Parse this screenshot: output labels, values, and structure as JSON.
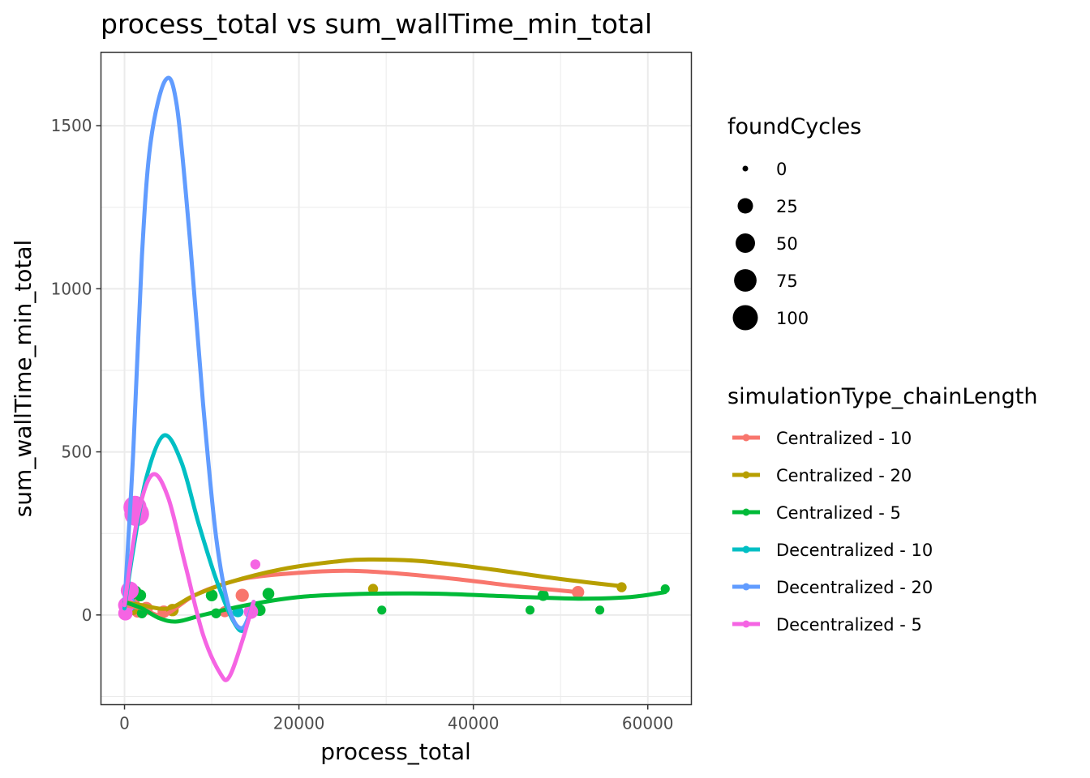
{
  "chart_data": {
    "type": "scatter",
    "title": "process_total  vs  sum_wallTime_min_total",
    "xlabel": "process_total",
    "ylabel": "sum_wallTime_min_total",
    "xlim": [
      -2700,
      65000
    ],
    "ylim": [
      -275,
      1725
    ],
    "xticks": [
      0,
      20000,
      40000,
      60000
    ],
    "xtick_labels": [
      "0",
      "20000",
      "40000",
      "60000"
    ],
    "yticks": [
      0,
      500,
      1000,
      1500
    ],
    "ytick_labels": [
      "0",
      "500",
      "1000",
      "1500"
    ],
    "grid": true,
    "size_legend": {
      "title": "foundCycles",
      "entries": [
        {
          "label": "0",
          "value": 0
        },
        {
          "label": "25",
          "value": 25
        },
        {
          "label": "50",
          "value": 50
        },
        {
          "label": "75",
          "value": 75
        },
        {
          "label": "100",
          "value": 100
        }
      ]
    },
    "color_legend": {
      "title": "simulationType_chainLength",
      "placement": "right"
    },
    "series": [
      {
        "name": "Centralized - 10",
        "color": "#F8766D",
        "points": [
          {
            "x": 300,
            "y": 20,
            "s": 20
          },
          {
            "x": 800,
            "y": 35,
            "s": 30
          },
          {
            "x": 1500,
            "y": 10,
            "s": 10
          },
          {
            "x": 2500,
            "y": 20,
            "s": 15
          },
          {
            "x": 4500,
            "y": 10,
            "s": 12
          },
          {
            "x": 11500,
            "y": 10,
            "s": 8
          },
          {
            "x": 13500,
            "y": 60,
            "s": 15
          },
          {
            "x": 52000,
            "y": 70,
            "s": 12
          }
        ],
        "curve": [
          {
            "x": 0,
            "y": 30
          },
          {
            "x": 2000,
            "y": 20
          },
          {
            "x": 4500,
            "y": 0
          },
          {
            "x": 8000,
            "y": 60
          },
          {
            "x": 12000,
            "y": 100
          },
          {
            "x": 16000,
            "y": 120
          },
          {
            "x": 24000,
            "y": 135
          },
          {
            "x": 30000,
            "y": 130
          },
          {
            "x": 38000,
            "y": 110
          },
          {
            "x": 45000,
            "y": 88
          },
          {
            "x": 52000,
            "y": 70
          }
        ]
      },
      {
        "name": "Centralized - 20",
        "color": "#B79F00",
        "points": [
          {
            "x": 1000,
            "y": 20,
            "s": 15
          },
          {
            "x": 5500,
            "y": 15,
            "s": 12
          },
          {
            "x": 28500,
            "y": 80,
            "s": 5
          },
          {
            "x": 57000,
            "y": 85,
            "s": 5
          }
        ],
        "curve": [
          {
            "x": 0,
            "y": 40
          },
          {
            "x": 2000,
            "y": 30
          },
          {
            "x": 5000,
            "y": 20
          },
          {
            "x": 8000,
            "y": 60
          },
          {
            "x": 12000,
            "y": 100
          },
          {
            "x": 18000,
            "y": 140
          },
          {
            "x": 24000,
            "y": 163
          },
          {
            "x": 28000,
            "y": 170
          },
          {
            "x": 34000,
            "y": 165
          },
          {
            "x": 42000,
            "y": 140
          },
          {
            "x": 50000,
            "y": 110
          },
          {
            "x": 57000,
            "y": 88
          }
        ]
      },
      {
        "name": "Centralized - 5",
        "color": "#00BA38",
        "points": [
          {
            "x": 500,
            "y": 50,
            "s": 10
          },
          {
            "x": 1200,
            "y": 70,
            "s": 15
          },
          {
            "x": 1800,
            "y": 60,
            "s": 10
          },
          {
            "x": 2000,
            "y": 5,
            "s": 5
          },
          {
            "x": 10000,
            "y": 60,
            "s": 10
          },
          {
            "x": 10500,
            "y": 5,
            "s": 5
          },
          {
            "x": 15500,
            "y": 15,
            "s": 10
          },
          {
            "x": 16500,
            "y": 65,
            "s": 10
          },
          {
            "x": 29500,
            "y": 15,
            "s": 3
          },
          {
            "x": 46500,
            "y": 15,
            "s": 3
          },
          {
            "x": 48000,
            "y": 60,
            "s": 8
          },
          {
            "x": 54500,
            "y": 15,
            "s": 3
          },
          {
            "x": 62000,
            "y": 80,
            "s": 3
          }
        ],
        "curve": [
          {
            "x": 0,
            "y": 40
          },
          {
            "x": 2000,
            "y": 20
          },
          {
            "x": 4000,
            "y": -10
          },
          {
            "x": 6000,
            "y": -20
          },
          {
            "x": 9000,
            "y": 0
          },
          {
            "x": 14000,
            "y": 30
          },
          {
            "x": 20000,
            "y": 55
          },
          {
            "x": 28000,
            "y": 65
          },
          {
            "x": 36000,
            "y": 65
          },
          {
            "x": 44000,
            "y": 57
          },
          {
            "x": 52000,
            "y": 50
          },
          {
            "x": 58000,
            "y": 55
          },
          {
            "x": 62000,
            "y": 70
          }
        ]
      },
      {
        "name": "Decentralized - 10",
        "color": "#00BFC4",
        "points": [
          {
            "x": 700,
            "y": 30,
            "s": 10
          },
          {
            "x": 13000,
            "y": 10,
            "s": 8
          }
        ],
        "curve": [
          {
            "x": 0,
            "y": 20
          },
          {
            "x": 1000,
            "y": 200
          },
          {
            "x": 2500,
            "y": 420
          },
          {
            "x": 4500,
            "y": 550
          },
          {
            "x": 6500,
            "y": 470
          },
          {
            "x": 8500,
            "y": 280
          },
          {
            "x": 10500,
            "y": 110
          },
          {
            "x": 12500,
            "y": -20
          },
          {
            "x": 13700,
            "y": -45
          },
          {
            "x": 14800,
            "y": 40
          }
        ]
      },
      {
        "name": "Decentralized - 20",
        "color": "#619CFF",
        "points": [
          {
            "x": 500,
            "y": 40,
            "s": 10
          },
          {
            "x": 14500,
            "y": 15,
            "s": 8
          }
        ],
        "curve": [
          {
            "x": 0,
            "y": 30
          },
          {
            "x": 1000,
            "y": 500
          },
          {
            "x": 2000,
            "y": 1100
          },
          {
            "x": 3000,
            "y": 1450
          },
          {
            "x": 4700,
            "y": 1640
          },
          {
            "x": 6000,
            "y": 1560
          },
          {
            "x": 7500,
            "y": 1150
          },
          {
            "x": 9000,
            "y": 650
          },
          {
            "x": 10500,
            "y": 240
          },
          {
            "x": 12000,
            "y": 20
          },
          {
            "x": 13500,
            "y": -40
          },
          {
            "x": 14800,
            "y": 40
          }
        ]
      },
      {
        "name": "Decentralized - 5",
        "color": "#F564E3",
        "points": [
          {
            "x": 1400,
            "y": 310,
            "s": 95
          },
          {
            "x": 1200,
            "y": 330,
            "s": 80
          },
          {
            "x": 600,
            "y": 75,
            "s": 40
          },
          {
            "x": 200,
            "y": 30,
            "s": 30
          },
          {
            "x": 100,
            "y": 5,
            "s": 20
          },
          {
            "x": 15000,
            "y": 155,
            "s": 5
          },
          {
            "x": 14500,
            "y": 10,
            "s": 20
          }
        ],
        "curve": [
          {
            "x": 0,
            "y": 30
          },
          {
            "x": 1500,
            "y": 300
          },
          {
            "x": 3200,
            "y": 430
          },
          {
            "x": 5000,
            "y": 360
          },
          {
            "x": 7000,
            "y": 150
          },
          {
            "x": 9000,
            "y": -60
          },
          {
            "x": 11000,
            "y": -180
          },
          {
            "x": 12000,
            "y": -190
          },
          {
            "x": 13500,
            "y": -80
          },
          {
            "x": 14800,
            "y": 40
          }
        ]
      }
    ]
  }
}
